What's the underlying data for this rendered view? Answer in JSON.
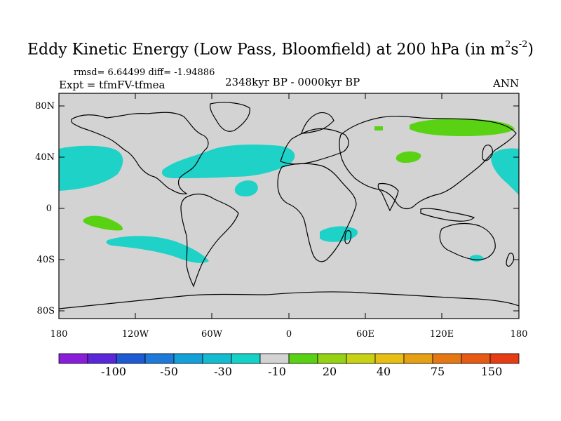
{
  "title": {
    "main": "Eddy Kinetic Energy (Low Pass, Bloomfield) at 200 hPa (in m",
    "sup1": "2",
    "mid": "s",
    "sup2": "-2",
    "end": ")"
  },
  "stats": "rmsd= 6.64499 diff= -1.94886",
  "experiment": "Expt = tfmFV-tfmea",
  "period": "2348kyr BP - 0000kyr BP",
  "season": "ANN",
  "map": {
    "lat_labels": [
      "80N",
      "40N",
      "0",
      "40S",
      "80S"
    ],
    "lon_labels": [
      "180",
      "120W",
      "60W",
      "0",
      "60E",
      "120E",
      "180"
    ],
    "lat_values": [
      80,
      40,
      0,
      -40,
      -80
    ],
    "lon_values": [
      -180,
      -120,
      -60,
      0,
      60,
      120,
      180
    ],
    "lat_range": [
      -90,
      90
    ],
    "lon_range": [
      -180,
      180
    ],
    "background_color": "#d3d3d3",
    "coastline_color": "#000000"
  },
  "colorbar": {
    "labels": [
      "-100",
      "-50",
      "-30",
      "-10",
      "20",
      "40",
      "75",
      "150"
    ],
    "colors": [
      "#8a1ed8",
      "#5a28d8",
      "#1e5ad2",
      "#1e7ad8",
      "#14a0d8",
      "#14bcd2",
      "#14d2c8",
      "#d3d3d3",
      "#5ad214",
      "#96d214",
      "#c8d214",
      "#e6be14",
      "#e6a014",
      "#e67814",
      "#e65a14",
      "#e63c14"
    ]
  },
  "anomaly_regions": [
    {
      "name": "north-pacific-east",
      "sign": "negative",
      "color": "#1ed2c8"
    },
    {
      "name": "north-pacific-west",
      "sign": "negative",
      "color": "#1ed2c8"
    },
    {
      "name": "north-atlantic",
      "sign": "negative",
      "color": "#1ed2c8"
    },
    {
      "name": "south-pacific",
      "sign": "negative",
      "color": "#1ed2c8"
    },
    {
      "name": "south-indian",
      "sign": "negative",
      "color": "#1ed2c8"
    },
    {
      "name": "australia",
      "sign": "negative",
      "color": "#1ed2c8"
    },
    {
      "name": "siberia",
      "sign": "positive",
      "color": "#5ad214"
    },
    {
      "name": "central-asia",
      "sign": "positive",
      "color": "#5ad214"
    },
    {
      "name": "south-pacific-positive",
      "sign": "positive",
      "color": "#5ad214"
    }
  ]
}
